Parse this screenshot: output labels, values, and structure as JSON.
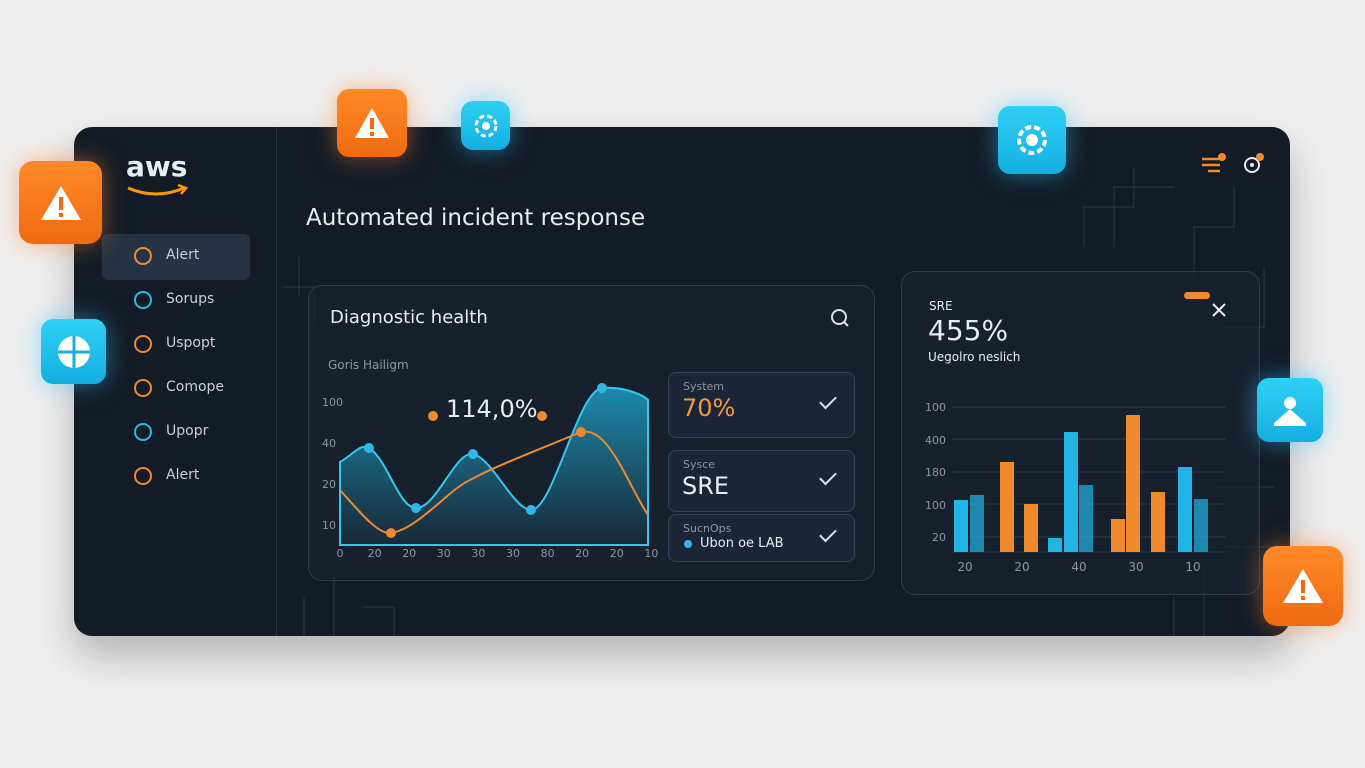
{
  "brand": "aws",
  "title": "Automated incident response",
  "sidebar": {
    "items": [
      "Alert",
      "Sorups",
      "Uspopt",
      "Comope",
      "Upopr",
      "Alert"
    ]
  },
  "diagnostic": {
    "title": "Diagnostic health",
    "subtitle": "Goris Hailigm",
    "headline": "114,0%",
    "y_labels": [
      "100",
      "40",
      "20",
      "10"
    ],
    "x_labels": [
      "0",
      "20",
      "20",
      "30",
      "30",
      "30",
      "80",
      "20",
      "20",
      "10"
    ]
  },
  "status_cards": [
    {
      "label": "System",
      "value": "70%"
    },
    {
      "label": "Sysce",
      "value": "SRE"
    },
    {
      "label": "SucnOps",
      "value": "Ubon oe LAB"
    }
  ],
  "sre_panel": {
    "label": "SRE",
    "headline": "455%",
    "subtitle": "Uegolro neslich",
    "y_labels": [
      "100",
      "400",
      "180",
      "100",
      "20"
    ],
    "x_labels": [
      "20",
      "20",
      "40",
      "30",
      "10"
    ]
  }
}
